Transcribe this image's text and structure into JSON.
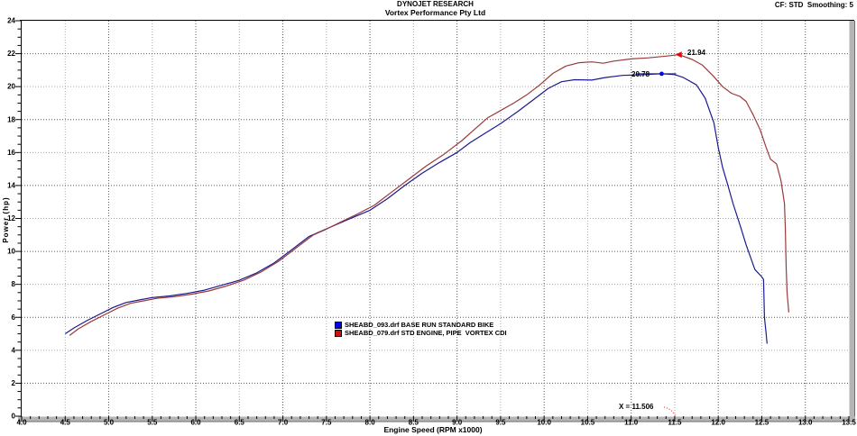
{
  "header": {
    "title_line1": "DYNOJET RESEARCH",
    "title_line2": "Vortex Performance Pty Ltd",
    "cf_smoothing": "CF: STD  Smoothing: 5"
  },
  "chart_data": {
    "type": "line",
    "title": "Vortex Performance Pty Ltd",
    "xlabel": "Engine Speed (RPM x1000)",
    "ylabel": "Power (hp)",
    "xlim": [
      4.0,
      13.5
    ],
    "ylim": [
      0,
      24
    ],
    "x_major_step": 0.5,
    "x_minor_step": 0.1,
    "y_major_step": 2,
    "y_minor_step": 0.5,
    "grid": "dotted",
    "legend_position": "bottom-center-inside",
    "colors": {
      "blue_curve": "#1b1b90",
      "red_curve": "#9b3a3a",
      "blue_marker": "#0000ee",
      "red_marker": "#ee0000",
      "grid_dark": "#5a5a5a",
      "grid_light": "#a8a8a8",
      "axis_bar": "#b4b4b4"
    },
    "series": [
      {
        "name": "SHEABD_093.drf BASE RUN STANDARD BIKE",
        "color": "#1b1b90",
        "marker": "dot",
        "peak_label": "20.78",
        "peak": [
          11.35,
          20.78
        ],
        "points": [
          [
            4.5,
            5.0
          ],
          [
            4.6,
            5.35
          ],
          [
            4.75,
            5.8
          ],
          [
            4.9,
            6.2
          ],
          [
            5.05,
            6.6
          ],
          [
            5.2,
            6.9
          ],
          [
            5.35,
            7.05
          ],
          [
            5.5,
            7.2
          ],
          [
            5.7,
            7.3
          ],
          [
            5.9,
            7.45
          ],
          [
            6.1,
            7.65
          ],
          [
            6.3,
            7.95
          ],
          [
            6.5,
            8.25
          ],
          [
            6.7,
            8.7
          ],
          [
            6.9,
            9.3
          ],
          [
            7.1,
            10.1
          ],
          [
            7.3,
            10.9
          ],
          [
            7.45,
            11.25
          ],
          [
            7.6,
            11.6
          ],
          [
            7.8,
            12.05
          ],
          [
            8.0,
            12.5
          ],
          [
            8.2,
            13.2
          ],
          [
            8.4,
            14.0
          ],
          [
            8.6,
            14.75
          ],
          [
            8.8,
            15.4
          ],
          [
            9.0,
            16.0
          ],
          [
            9.15,
            16.6
          ],
          [
            9.3,
            17.1
          ],
          [
            9.5,
            17.75
          ],
          [
            9.7,
            18.5
          ],
          [
            9.9,
            19.3
          ],
          [
            10.05,
            19.9
          ],
          [
            10.2,
            20.3
          ],
          [
            10.35,
            20.42
          ],
          [
            10.55,
            20.4
          ],
          [
            10.7,
            20.55
          ],
          [
            10.9,
            20.68
          ],
          [
            11.1,
            20.72
          ],
          [
            11.35,
            20.78
          ],
          [
            11.5,
            20.73
          ],
          [
            11.6,
            20.55
          ],
          [
            11.75,
            20.1
          ],
          [
            11.85,
            19.3
          ],
          [
            11.95,
            17.8
          ],
          [
            12.0,
            16.3
          ],
          [
            12.05,
            15.1
          ],
          [
            12.1,
            14.2
          ],
          [
            12.17,
            12.9
          ],
          [
            12.25,
            11.6
          ],
          [
            12.32,
            10.4
          ],
          [
            12.42,
            8.9
          ],
          [
            12.5,
            8.45
          ],
          [
            12.52,
            8.3
          ],
          [
            12.53,
            6.0
          ],
          [
            12.55,
            5.0
          ],
          [
            12.56,
            4.4
          ]
        ]
      },
      {
        "name": "SHEABD_079.drf STD ENGINE, PIPE  VORTEX CDI",
        "color": "#9b3a3a",
        "marker": "arrow",
        "peak_label": "21.94",
        "peak": [
          11.55,
          21.94
        ],
        "points": [
          [
            4.55,
            4.9
          ],
          [
            4.65,
            5.3
          ],
          [
            4.8,
            5.75
          ],
          [
            4.95,
            6.15
          ],
          [
            5.1,
            6.55
          ],
          [
            5.25,
            6.85
          ],
          [
            5.4,
            7.0
          ],
          [
            5.55,
            7.15
          ],
          [
            5.75,
            7.25
          ],
          [
            5.95,
            7.4
          ],
          [
            6.15,
            7.6
          ],
          [
            6.35,
            7.9
          ],
          [
            6.55,
            8.25
          ],
          [
            6.75,
            8.75
          ],
          [
            6.95,
            9.4
          ],
          [
            7.15,
            10.2
          ],
          [
            7.35,
            11.0
          ],
          [
            7.5,
            11.35
          ],
          [
            7.65,
            11.75
          ],
          [
            7.85,
            12.25
          ],
          [
            8.05,
            12.8
          ],
          [
            8.25,
            13.6
          ],
          [
            8.45,
            14.4
          ],
          [
            8.65,
            15.2
          ],
          [
            8.85,
            15.9
          ],
          [
            9.05,
            16.7
          ],
          [
            9.2,
            17.4
          ],
          [
            9.35,
            18.1
          ],
          [
            9.5,
            18.55
          ],
          [
            9.65,
            19.0
          ],
          [
            9.8,
            19.5
          ],
          [
            9.95,
            20.1
          ],
          [
            10.1,
            20.8
          ],
          [
            10.25,
            21.25
          ],
          [
            10.4,
            21.45
          ],
          [
            10.55,
            21.5
          ],
          [
            10.68,
            21.42
          ],
          [
            10.8,
            21.55
          ],
          [
            11.0,
            21.68
          ],
          [
            11.2,
            21.75
          ],
          [
            11.4,
            21.85
          ],
          [
            11.55,
            21.94
          ],
          [
            11.7,
            21.65
          ],
          [
            11.82,
            21.3
          ],
          [
            11.95,
            20.6
          ],
          [
            12.05,
            20.0
          ],
          [
            12.15,
            19.6
          ],
          [
            12.25,
            19.4
          ],
          [
            12.32,
            19.1
          ],
          [
            12.4,
            18.3
          ],
          [
            12.48,
            17.4
          ],
          [
            12.55,
            16.3
          ],
          [
            12.6,
            15.6
          ],
          [
            12.67,
            15.3
          ],
          [
            12.72,
            14.3
          ],
          [
            12.76,
            12.9
          ],
          [
            12.77,
            11.5
          ],
          [
            12.78,
            9.0
          ],
          [
            12.79,
            7.5
          ],
          [
            12.81,
            6.3
          ]
        ]
      }
    ],
    "annotation": {
      "text": "X = 11.506",
      "x": 11.506
    }
  }
}
